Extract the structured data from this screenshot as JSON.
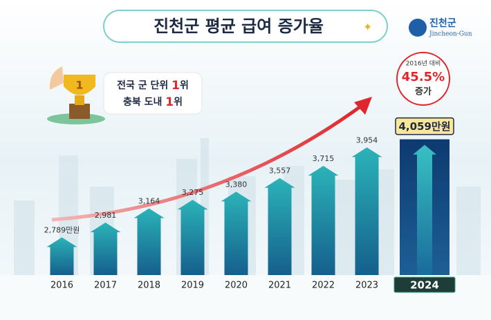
{
  "chart_data": {
    "type": "bar",
    "title": "진천군 평균 급여 증가율",
    "categories": [
      "2016",
      "2017",
      "2018",
      "2019",
      "2020",
      "2021",
      "2022",
      "2023",
      "2024"
    ],
    "values": [
      2789,
      2981,
      3164,
      3275,
      3380,
      3557,
      3715,
      3954,
      4059
    ],
    "value_labels": [
      "2,789만원",
      "2,981",
      "3,164",
      "3,275",
      "3,380",
      "3,557",
      "3,715",
      "3,954",
      "4,059만원"
    ],
    "ylim": [
      2300,
      4100
    ],
    "color": "#1f8fa8",
    "highlight_color": "#0d3a70"
  },
  "logo": {
    "name": "진천군",
    "english": "Jincheon-Gun"
  },
  "badge": {
    "lines": [
      {
        "text": "전국 군 단위 ",
        "rank": "1",
        "suffix": "위"
      },
      {
        "text": "충북 도내 ",
        "rank": "1",
        "suffix": "위"
      }
    ],
    "trophy": "1"
  },
  "callout": {
    "line1": "2016년 대비",
    "value": "45.5%",
    "line2": "증가"
  }
}
